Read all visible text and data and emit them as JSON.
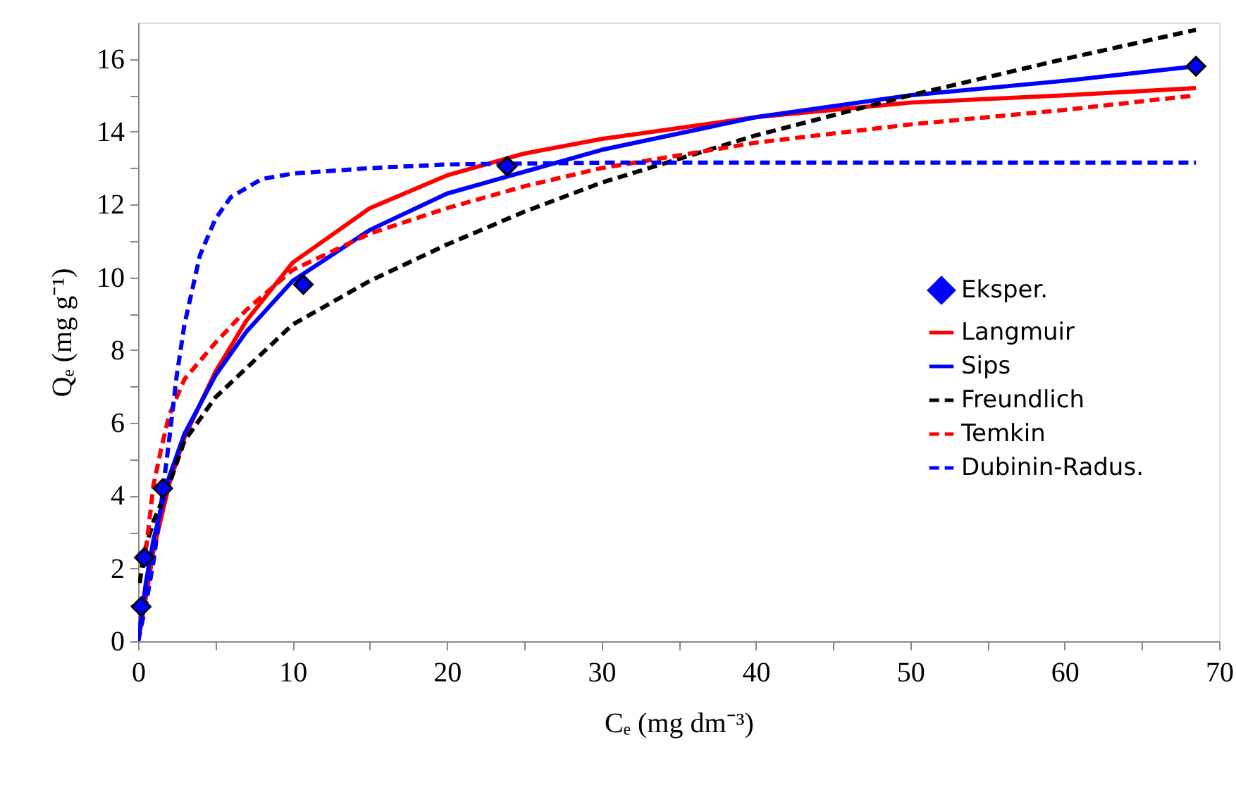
{
  "chart_data": {
    "type": "line",
    "xlabel": "Cₑ  (mg dm⁻³)",
    "ylabel": "Qₑ  (mg g⁻¹)",
    "xlim": [
      0,
      70
    ],
    "ylim": [
      0,
      17
    ],
    "xticks": [
      0,
      {
        "value": 5,
        "label": null
      },
      10,
      {
        "value": 15,
        "label": null
      },
      20,
      {
        "value": 25,
        "label": null
      },
      30,
      {
        "value": 35,
        "label": null
      },
      40,
      {
        "value": 45,
        "label": null
      },
      50,
      {
        "value": 55,
        "label": null
      },
      60,
      {
        "value": 65,
        "label": null
      },
      70
    ],
    "yticks": [
      0,
      {
        "value": 1,
        "label": null
      },
      2,
      {
        "value": 3,
        "label": null
      },
      4,
      {
        "value": 5,
        "label": null
      },
      6,
      {
        "value": 7,
        "label": null
      },
      8,
      {
        "value": 9,
        "label": null
      },
      10,
      {
        "value": 11,
        "label": null
      },
      12,
      {
        "value": 13,
        "label": null
      },
      14,
      {
        "value": 15,
        "label": null
      },
      16
    ],
    "grid": false,
    "legend": "right",
    "series": [
      {
        "name": "Eksper.",
        "type": "scatter",
        "marker": "diamond",
        "color": "#0000ff",
        "x": [
          0.2,
          0.4,
          1.6,
          10.7,
          23.9,
          68.5
        ],
        "values": [
          0.95,
          2.3,
          4.2,
          9.8,
          13.05,
          15.8
        ]
      },
      {
        "name": "Langmuir",
        "line_style": "solid",
        "color": "#ff0000",
        "x": [
          0,
          0.5,
          1,
          2,
          3,
          5,
          7,
          10,
          15,
          20,
          25,
          30,
          40,
          50,
          60,
          68.5
        ],
        "values": [
          0,
          1.2,
          2.5,
          4.3,
          5.6,
          7.4,
          8.8,
          10.4,
          11.9,
          12.8,
          13.4,
          13.8,
          14.4,
          14.8,
          15.0,
          15.2
        ]
      },
      {
        "name": "Sips",
        "line_style": "solid",
        "color": "#0000ff",
        "x": [
          0,
          0.5,
          1,
          2,
          3,
          5,
          7,
          10,
          15,
          20,
          25,
          30,
          40,
          50,
          60,
          68.5
        ],
        "values": [
          0,
          1.6,
          2.8,
          4.5,
          5.7,
          7.3,
          8.5,
          9.9,
          11.3,
          12.3,
          12.9,
          13.5,
          14.4,
          15.0,
          15.4,
          15.8
        ]
      },
      {
        "name": "Freundlich",
        "line_style": "dashed",
        "color": "#000000",
        "x": [
          0.1,
          0.3,
          0.5,
          1,
          2,
          3,
          5,
          7,
          10,
          15,
          20,
          25,
          30,
          40,
          50,
          60,
          68.5
        ],
        "values": [
          1.6,
          2.2,
          2.6,
          3.3,
          4.3,
          5.5,
          6.7,
          7.5,
          8.7,
          9.9,
          10.9,
          11.8,
          12.6,
          13.9,
          15.0,
          16.0,
          16.8
        ]
      },
      {
        "name": "Temkin",
        "line_style": "dashed",
        "color": "#ff0000",
        "x": [
          0.5,
          1,
          1.5,
          2,
          3,
          5,
          7,
          10,
          15,
          20,
          25,
          30,
          40,
          50,
          60,
          68.5
        ],
        "values": [
          2.5,
          4.3,
          5.3,
          6.2,
          7.2,
          8.2,
          9.1,
          10.2,
          11.2,
          11.9,
          12.5,
          13.0,
          13.7,
          14.2,
          14.6,
          15.0
        ]
      },
      {
        "name": "Dubinin-Radus.",
        "line_style": "dashed",
        "color": "#0000ff",
        "x": [
          0,
          0.5,
          1,
          1.5,
          2,
          2.5,
          3,
          4,
          5,
          6,
          8,
          10,
          15,
          20,
          30,
          68.5
        ],
        "values": [
          0,
          1.0,
          2.2,
          3.8,
          5.5,
          7.3,
          8.7,
          10.6,
          11.6,
          12.2,
          12.7,
          12.85,
          13.0,
          13.1,
          13.15,
          13.15
        ]
      }
    ]
  }
}
